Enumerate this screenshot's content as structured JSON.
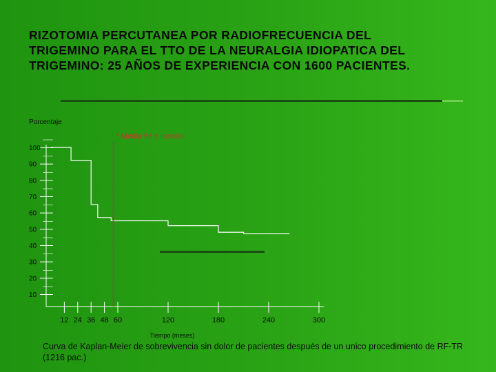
{
  "slide": {
    "title_lines": [
      "RIZOTOMIA PERCUTANEA POR RADIOFRECUENCIA DEL",
      "TRIGEMINO PARA EL TTO DE LA NEURALGIA IDIOPATICA DEL",
      "TRIGEMINO: 25 AÑOS DE EXPERIENCIA CON 1600 PACIENTES."
    ],
    "caption": "Curva de Kaplan-Meier de sobrevivencia sin dolor de pacientes después de un unico procedimiento de RF-TR (1216 pac.)"
  },
  "colors": {
    "background": "#249c12",
    "curve": "#ffffff",
    "axis": "#ffffff",
    "median_line": "#c0392b",
    "text": "#0d0d0d"
  },
  "chart_data": {
    "type": "line",
    "ylabel": "Porcentaje",
    "xlabel": "Tiempo (meses)",
    "xlim": [
      0,
      300
    ],
    "ylim": [
      10,
      100
    ],
    "x_ticks": [
      12,
      24,
      36,
      48,
      60,
      120,
      180,
      240,
      300
    ],
    "y_ticks": [
      100,
      90,
      80,
      70,
      60,
      50,
      40,
      30,
      20,
      10
    ],
    "series": [
      {
        "step": true,
        "x": [
          0,
          12,
          12,
          18,
          18,
          36,
          36,
          42,
          42,
          54,
          54,
          60,
          60,
          120,
          120,
          180,
          180,
          210,
          210,
          265
        ],
        "y": [
          100,
          100,
          100,
          100,
          92,
          92,
          65,
          65,
          57,
          57,
          55,
          55,
          55,
          55,
          52,
          52,
          48,
          48,
          47,
          47
        ]
      }
    ],
    "annotations": [
      {
        "text": "* Media 56 ± meses",
        "x": 56
      }
    ],
    "grid": false
  }
}
